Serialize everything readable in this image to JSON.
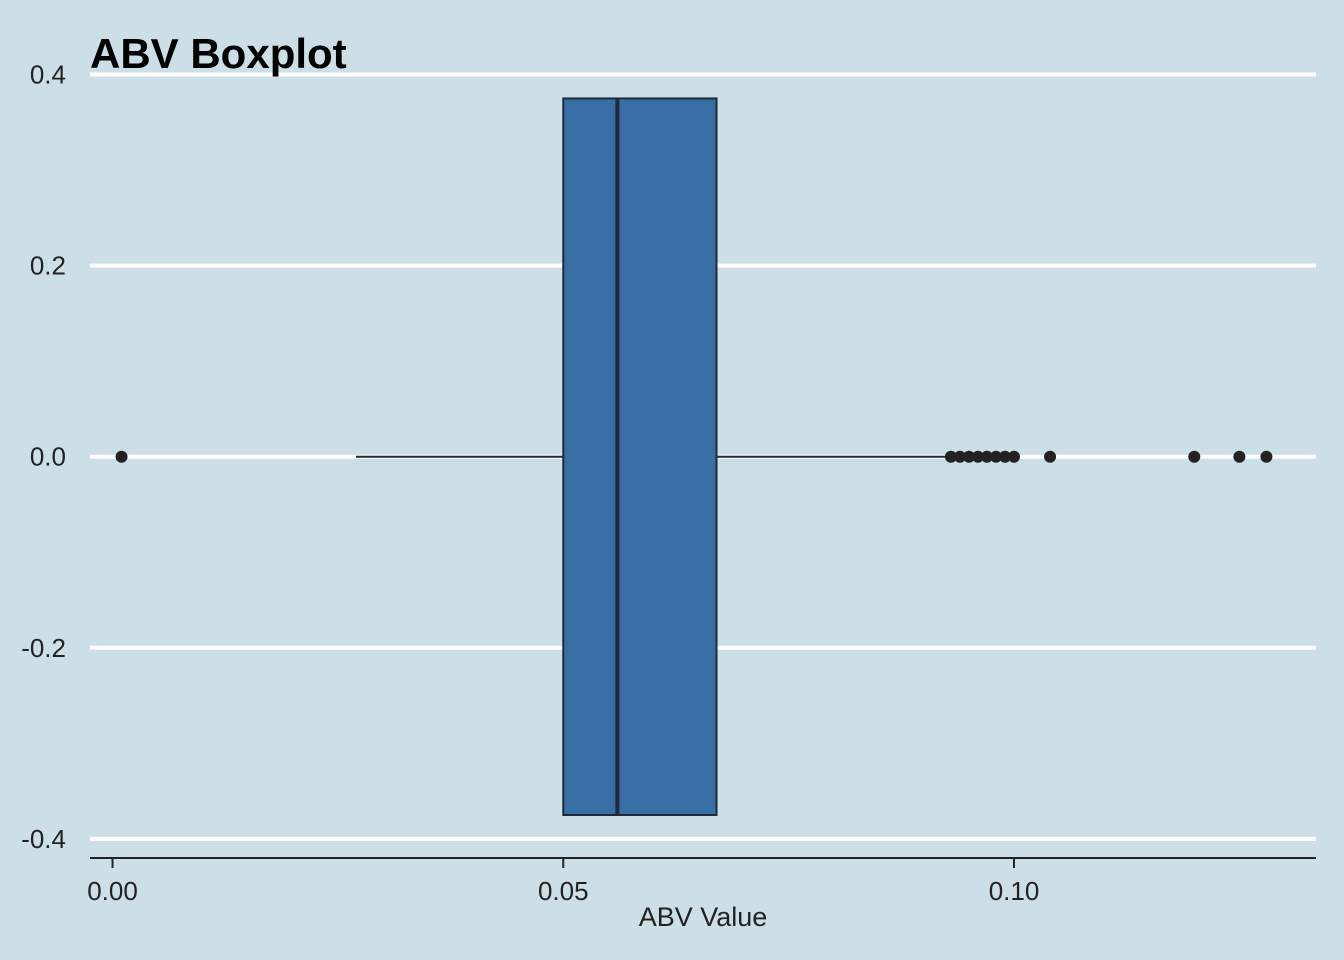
{
  "chart_data": {
    "type": "boxplot",
    "title": "ABV Boxplot",
    "xlabel": "ABV Value",
    "ylabel": "",
    "xlim": [
      -0.0025,
      0.1335
    ],
    "ylim": [
      -0.42,
      0.41
    ],
    "x_ticks": [
      0.0,
      0.05,
      0.1
    ],
    "x_tick_labels": [
      "0.00",
      "0.05",
      "0.10"
    ],
    "y_ticks": [
      0.4,
      0.2,
      0.0,
      -0.2,
      -0.4
    ],
    "y_tick_labels": [
      "0.4",
      "0.2",
      "0.0",
      "-0.2",
      "-0.4"
    ],
    "grid": "horizontal",
    "box": {
      "whisker_low": 0.027,
      "q1": 0.05,
      "median": 0.056,
      "q3": 0.067,
      "whisker_high": 0.0925,
      "half_width": 0.375,
      "fill": "#386ea6",
      "stroke": "#1f2a36"
    },
    "outliers": [
      0.001,
      0.093,
      0.094,
      0.095,
      0.096,
      0.097,
      0.098,
      0.099,
      0.1,
      0.104,
      0.12,
      0.125,
      0.128
    ],
    "colors": {
      "background": "#cddfe6",
      "grid": "#ffffff",
      "axis": "#222222",
      "points": "#222222"
    }
  }
}
